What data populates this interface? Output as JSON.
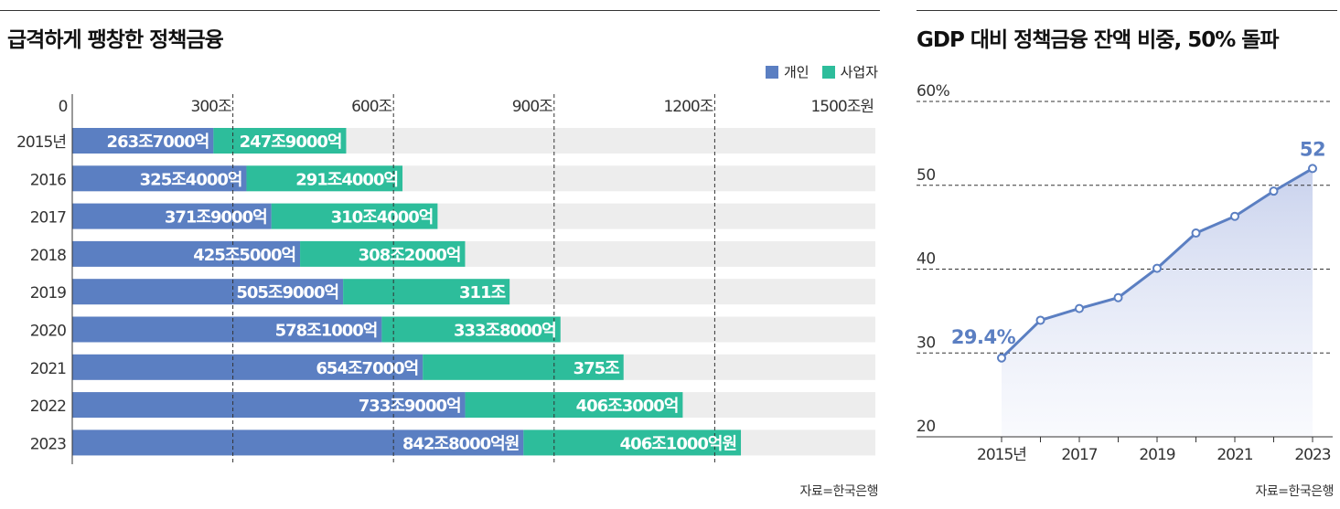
{
  "left": {
    "title": "급격하게 팽창한 정책금융",
    "source": "자료=한국은행",
    "legend": [
      {
        "label": "개인",
        "color": "#5b7fc2"
      },
      {
        "label": "사업자",
        "color": "#2dbd9b"
      }
    ]
  },
  "right": {
    "title": "GDP 대비 정책금융 잔액 비중, 50% 돌파",
    "source": "자료=한국은행"
  },
  "chart_data": [
    {
      "type": "bar",
      "orientation": "horizontal",
      "stacked": true,
      "categories": [
        "2015년",
        "2016",
        "2017",
        "2018",
        "2019",
        "2020",
        "2021",
        "2022",
        "2023"
      ],
      "xlim": [
        0,
        1500
      ],
      "ticks": [
        {
          "value": 0,
          "label": "0"
        },
        {
          "value": 300,
          "label": "300조"
        },
        {
          "value": 600,
          "label": "600조"
        },
        {
          "value": 900,
          "label": "900조"
        },
        {
          "value": 1200,
          "label": "1200조"
        },
        {
          "value": 1500,
          "label": "1500조원"
        }
      ],
      "series": [
        {
          "name": "개인",
          "color": "#5b7fc2",
          "values": [
            263.7,
            325.4,
            371.9,
            425.5,
            505.9,
            578.1,
            654.7,
            733.9,
            842.8
          ],
          "labels": [
            "263조7000억",
            "325조4000억",
            "371조9000억",
            "425조5000억",
            "505조9000억",
            "578조1000억",
            "654조7000억",
            "733조9000억",
            "842조8000억원"
          ]
        },
        {
          "name": "사업자",
          "color": "#2dbd9b",
          "values": [
            247.9,
            291.4,
            310.4,
            308.2,
            311.0,
            333.8,
            375.0,
            406.3,
            406.1
          ],
          "labels": [
            "247조9000억",
            "291조4000억",
            "310조4000억",
            "308조2000억",
            "311조",
            "333조8000억",
            "375조",
            "406조3000억",
            "406조1000억원"
          ]
        }
      ]
    },
    {
      "type": "line",
      "x": [
        2015,
        2016,
        2017,
        2018,
        2019,
        2020,
        2021,
        2022,
        2023
      ],
      "xticks": [
        {
          "value": 2015,
          "label": "2015년"
        },
        {
          "value": 2017,
          "label": "2017"
        },
        {
          "value": 2019,
          "label": "2019"
        },
        {
          "value": 2021,
          "label": "2021"
        },
        {
          "value": 2023,
          "label": "2023"
        }
      ],
      "ylim": [
        20,
        60
      ],
      "yticks": [
        {
          "value": 60,
          "label": "60%"
        },
        {
          "value": 50,
          "label": "50"
        },
        {
          "value": 40,
          "label": "40"
        },
        {
          "value": 30,
          "label": "30"
        },
        {
          "value": 20,
          "label": "20"
        }
      ],
      "series": [
        {
          "values": [
            29.4,
            33.9,
            35.3,
            36.6,
            40.1,
            44.3,
            46.3,
            49.3,
            52.0
          ]
        }
      ],
      "annotations": [
        {
          "index": 0,
          "text": "29.4%"
        },
        {
          "index": 8,
          "text": "52"
        }
      ],
      "color": "#5b7fc2"
    }
  ]
}
